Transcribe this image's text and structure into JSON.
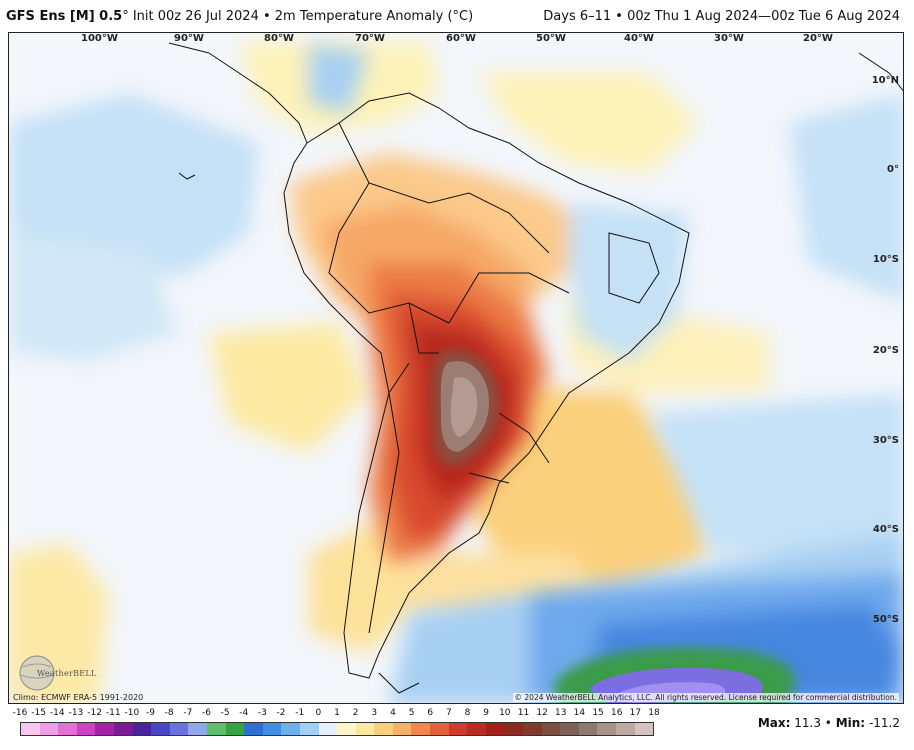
{
  "header": {
    "model": "GFS Ens [M] 0.5",
    "init": "° Init 00z 26 Jul 2024 • 2m Temperature Anomaly (°C)",
    "valid": "Days 6–11 • 00z Thu 1 Aug 2024—00z Tue 6 Aug 2024"
  },
  "map": {
    "lon_labels": [
      "100°W",
      "90°W",
      "80°W",
      "70°W",
      "60°W",
      "50°W",
      "40°W",
      "30°W",
      "20°W"
    ],
    "lat_labels": [
      "10°N",
      "0°",
      "10°S",
      "20°S",
      "30°S",
      "40°S",
      "50°S"
    ],
    "climo": "Climo: ECMWF ERA-5 1991-2020",
    "copyright": "© 2024 WeatherBELL Analytics, LLC. All rights reserved. License required for commercial distribution.",
    "logo": "WeatherBELL"
  },
  "scale": {
    "labels": [
      "-16",
      "-15",
      "-14",
      "-13",
      "-12",
      "-11",
      "-10",
      "-9",
      "-8",
      "-7",
      "-6",
      "-5",
      "-4",
      "-3",
      "-2",
      "-1",
      "0",
      "1",
      "2",
      "3",
      "4",
      "5",
      "6",
      "7",
      "8",
      "9",
      "10",
      "11",
      "12",
      "13",
      "14",
      "15",
      "16",
      "17",
      "18"
    ],
    "colors": [
      "#f9c6f0",
      "#f29ee6",
      "#e46fd6",
      "#cf41c2",
      "#a521a8",
      "#7b1b96",
      "#4b22a0",
      "#4a45c9",
      "#6a72e0",
      "#8ea7ee",
      "#5fbe6e",
      "#33a344",
      "#2d6fd6",
      "#3f8ee6",
      "#6cb0ee",
      "#a0d0f5",
      "#e6f0fb",
      "#fdf7c8",
      "#fde8a0",
      "#fbd07c",
      "#f7b163",
      "#f1884a",
      "#e4603a",
      "#cd3b2c",
      "#b82a22",
      "#a41e1a",
      "#8c2a1e",
      "#7f3a2c",
      "#7d4d40",
      "#7e6155",
      "#8e7a70",
      "#a89189",
      "#bfaaa3",
      "#d4c3be"
    ]
  },
  "stats": {
    "max_label": "Max:",
    "max_value": "11.3",
    "sep": "•",
    "min_label": "Min:",
    "min_value": "-11.2"
  }
}
